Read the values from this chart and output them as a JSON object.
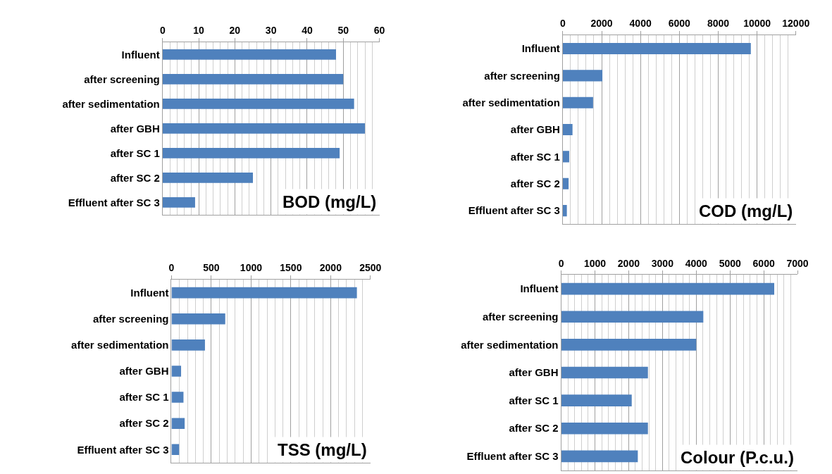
{
  "chart_data": [
    {
      "type": "bar",
      "orientation": "horizontal",
      "title": "BOD (mg/L)",
      "categories": [
        "Influent",
        "after screening",
        "after sedimentation",
        "after GBH",
        "after SC 1",
        "after SC 2",
        "Effluent after SC 3"
      ],
      "values": [
        48,
        50,
        53,
        56,
        49,
        25,
        9
      ],
      "color": "#4f81bd",
      "xlim": [
        0,
        60
      ],
      "xticks": [
        0,
        10,
        20,
        30,
        40,
        50,
        60
      ],
      "grid": "x"
    },
    {
      "type": "bar",
      "orientation": "horizontal",
      "title": "COD (mg/L)",
      "categories": [
        "Influent",
        "after screening",
        "after sedimentation",
        "after GBH",
        "after SC 1",
        "after SC 2",
        "Effluent after SC 3"
      ],
      "values": [
        9680,
        2040,
        1560,
        500,
        330,
        300,
        210
      ],
      "color": "#4f81bd",
      "xlim": [
        0,
        12000
      ],
      "xticks": [
        0,
        2000,
        4000,
        6000,
        8000,
        10000,
        12000
      ],
      "grid": "x"
    },
    {
      "type": "bar",
      "orientation": "horizontal",
      "title": "TSS (mg/L)",
      "categories": [
        "Influent",
        "after screening",
        "after sedimentation",
        "after GBH",
        "after SC 1",
        "after SC 2",
        "Effluent after SC 3"
      ],
      "values": [
        2330,
        675,
        420,
        120,
        150,
        165,
        95
      ],
      "color": "#4f81bd",
      "xlim": [
        0,
        2500
      ],
      "xticks": [
        0,
        500,
        1000,
        1500,
        2000,
        2500
      ],
      "grid": "x"
    },
    {
      "type": "bar",
      "orientation": "horizontal",
      "title": "Colour (P.c.u.)",
      "categories": [
        "Influent",
        "after screening",
        "after sedimentation",
        "after GBH",
        "after SC 1",
        "after SC 2",
        "Effluent after SC 3"
      ],
      "values": [
        6310,
        4210,
        4000,
        2570,
        2090,
        2570,
        2270
      ],
      "color": "#4f81bd",
      "xlim": [
        0,
        7000
      ],
      "xticks": [
        0,
        1000,
        2000,
        3000,
        4000,
        5000,
        6000,
        7000
      ],
      "grid": "x"
    }
  ]
}
